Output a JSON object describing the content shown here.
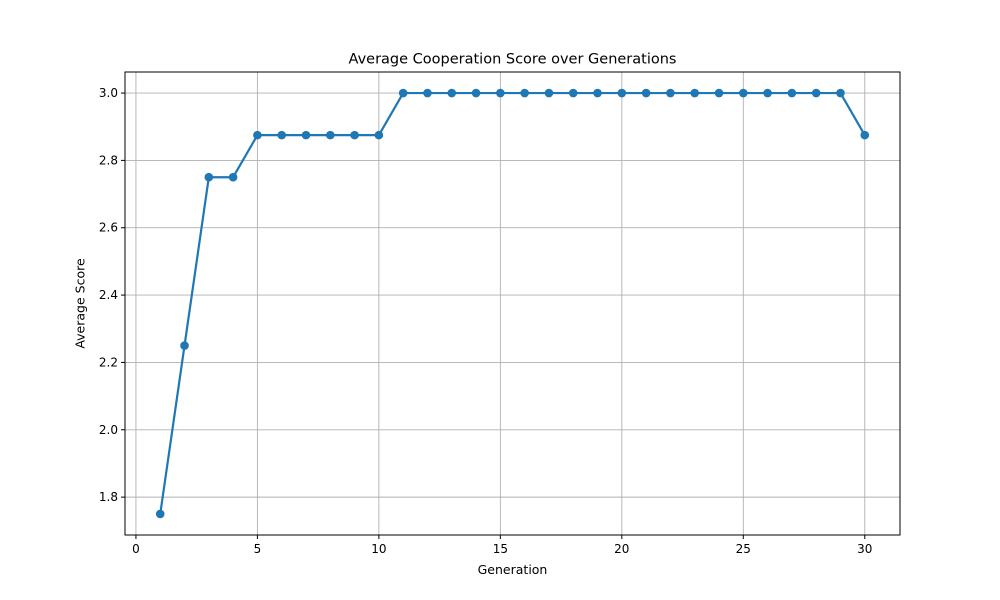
{
  "chart_data": {
    "type": "line",
    "title": "Average Cooperation Score over Generations",
    "xlabel": "Generation",
    "ylabel": "Average Score",
    "xlim": [
      -0.45,
      31.45
    ],
    "ylim": [
      1.6875,
      3.0625
    ],
    "xticks": [
      0,
      5,
      10,
      15,
      20,
      25,
      30
    ],
    "yticks": [
      1.8,
      2.0,
      2.2,
      2.4,
      2.6,
      2.8,
      3.0
    ],
    "xtick_labels": [
      "0",
      "5",
      "10",
      "15",
      "20",
      "25",
      "30"
    ],
    "ytick_labels": [
      "1.8",
      "2.0",
      "2.2",
      "2.4",
      "2.6",
      "2.8",
      "3.0"
    ],
    "grid": true,
    "marker": "circle",
    "x": [
      1,
      2,
      3,
      4,
      5,
      6,
      7,
      8,
      9,
      10,
      11,
      12,
      13,
      14,
      15,
      16,
      17,
      18,
      19,
      20,
      21,
      22,
      23,
      24,
      25,
      26,
      27,
      28,
      29,
      30
    ],
    "series": [
      {
        "color": "#1f77b4",
        "values": [
          1.75,
          2.25,
          2.75,
          2.75,
          2.875,
          2.875,
          2.875,
          2.875,
          2.875,
          2.875,
          3.0,
          3.0,
          3.0,
          3.0,
          3.0,
          3.0,
          3.0,
          3.0,
          3.0,
          3.0,
          3.0,
          3.0,
          3.0,
          3.0,
          3.0,
          3.0,
          3.0,
          3.0,
          3.0,
          2.875
        ]
      }
    ]
  }
}
